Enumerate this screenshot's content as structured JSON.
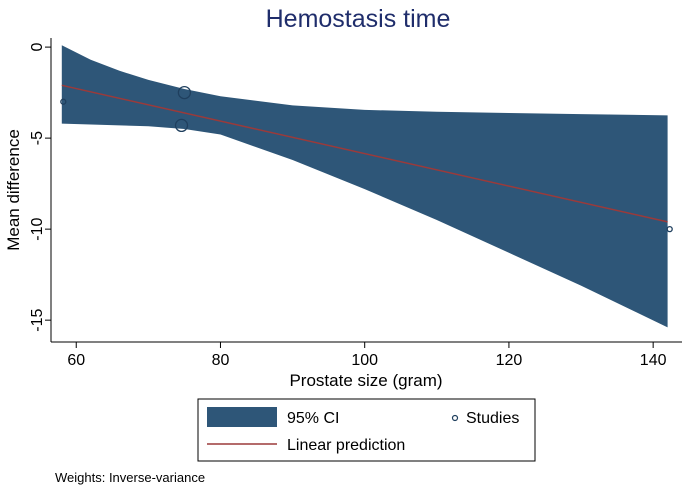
{
  "chart_data": {
    "type": "line",
    "title": "Hemostasis time",
    "xlabel": "Prostate size (gram)",
    "ylabel": "Mean difference",
    "xlim": [
      56.5,
      144
    ],
    "ylim": [
      -16.2,
      0.5
    ],
    "xticks": [
      {
        "value": 60,
        "label": "60"
      },
      {
        "value": 80,
        "label": "80"
      },
      {
        "value": 100,
        "label": "100"
      },
      {
        "value": 120,
        "label": "120"
      },
      {
        "value": 140,
        "label": "140"
      }
    ],
    "yticks": [
      {
        "value": 0,
        "label": "0"
      },
      {
        "value": -5,
        "label": "-5"
      },
      {
        "value": -10,
        "label": "-10"
      },
      {
        "value": -15,
        "label": "-15"
      }
    ],
    "grid": false,
    "ci_band": {
      "x": [
        58,
        62,
        66,
        70,
        75,
        80,
        90,
        100,
        110,
        120,
        130,
        142
      ],
      "upper": [
        0.1,
        -0.7,
        -1.3,
        -1.8,
        -2.3,
        -2.7,
        -3.2,
        -3.45,
        -3.55,
        -3.62,
        -3.68,
        -3.75
      ],
      "lower": [
        -4.2,
        -4.25,
        -4.3,
        -4.35,
        -4.5,
        -4.8,
        -6.2,
        -7.8,
        -9.5,
        -11.3,
        -13.1,
        -15.4
      ]
    },
    "series": [
      {
        "name": "Linear prediction",
        "type": "line",
        "x": [
          58,
          142
        ],
        "y": [
          -2.1,
          -9.6
        ]
      },
      {
        "name": "Studies",
        "type": "scatter",
        "x": [
          58.2,
          74.6,
          75.0,
          142.3
        ],
        "y": [
          -3.0,
          -4.3,
          -2.5,
          -10.0
        ],
        "weights": [
          1,
          2,
          2,
          1
        ]
      }
    ],
    "legend": {
      "position": "bottom",
      "entries": [
        {
          "label": "95% CI",
          "kind": "band"
        },
        {
          "label": "Studies",
          "kind": "marker"
        },
        {
          "label": "Linear prediction",
          "kind": "line"
        }
      ]
    },
    "footnote": "Weights: Inverse-variance",
    "colors": {
      "band": "#2e5678",
      "line": "#9b3a3a",
      "marker": "#1f3f5e",
      "title": "#1f2d6b"
    }
  }
}
